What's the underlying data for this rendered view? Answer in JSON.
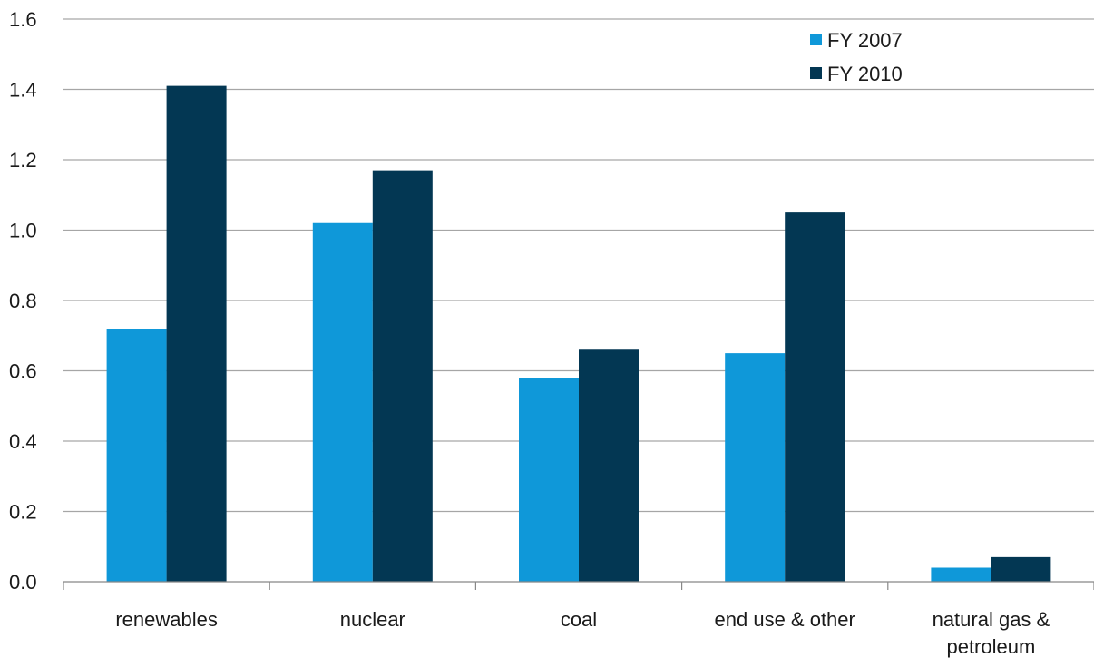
{
  "chart_data": {
    "type": "bar",
    "title": "",
    "xlabel": "",
    "ylabel": "",
    "categories": [
      [
        "renewables"
      ],
      [
        "nuclear"
      ],
      [
        "coal"
      ],
      [
        "end use & other"
      ],
      [
        "natural gas &",
        "petroleum"
      ]
    ],
    "series": [
      {
        "name": "FY 2007",
        "color": "#0f98d9",
        "values": [
          0.72,
          1.02,
          0.58,
          0.65,
          0.04
        ]
      },
      {
        "name": "FY 2010",
        "color": "#033753",
        "values": [
          1.41,
          1.17,
          0.66,
          1.05,
          0.07
        ]
      }
    ],
    "ylim": [
      0,
      1.6
    ],
    "yticks": [
      "0.0",
      "0.2",
      "0.4",
      "0.6",
      "0.8",
      "1.0",
      "1.2",
      "1.4",
      "1.6"
    ],
    "grid": true,
    "legend_position": "top-right"
  }
}
